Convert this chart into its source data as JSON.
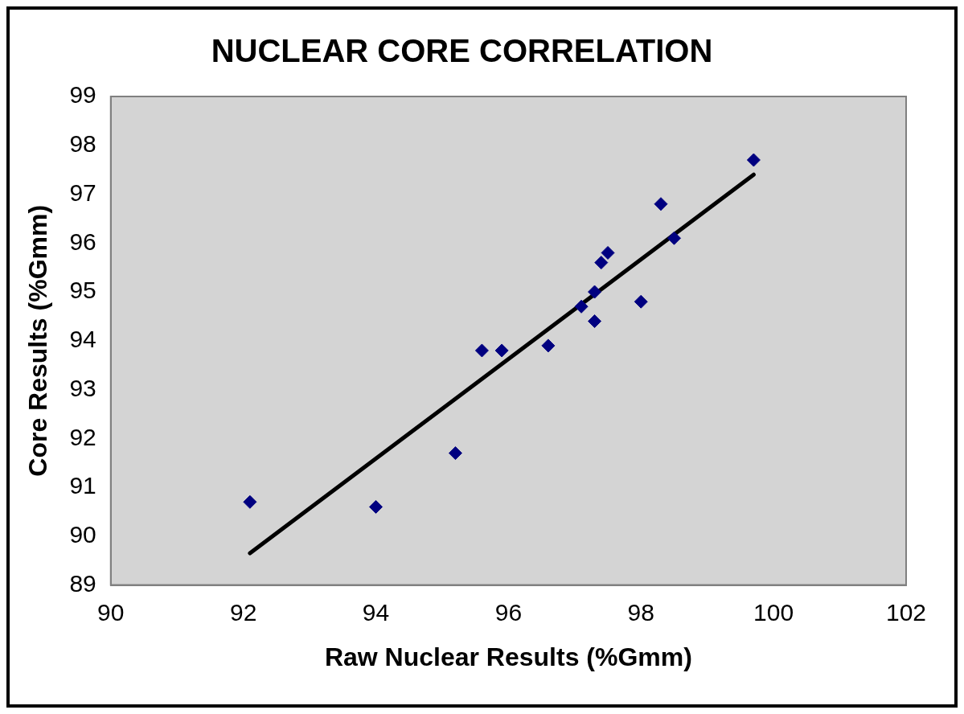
{
  "chart_data": {
    "type": "scatter",
    "title": "NUCLEAR CORE CORRELATION",
    "xlabel": "Raw Nuclear Results (%Gmm)",
    "ylabel": "Core Results (%Gmm)",
    "xlim": [
      90,
      102
    ],
    "xticks": [
      90,
      92,
      94,
      96,
      98,
      100,
      102
    ],
    "ylim": [
      89,
      99
    ],
    "yticks": [
      89,
      90,
      91,
      92,
      93,
      94,
      95,
      96,
      97,
      98,
      99
    ],
    "grid": false,
    "legend": false,
    "series": [
      {
        "color": "#000080",
        "marker": "diamond",
        "x": [
          92.1,
          94.0,
          95.2,
          95.6,
          95.9,
          96.6,
          97.1,
          97.3,
          97.3,
          97.4,
          97.5,
          98.0,
          98.3,
          98.5,
          99.7
        ],
        "values": [
          90.7,
          90.6,
          91.7,
          93.8,
          93.8,
          93.9,
          94.7,
          95.0,
          94.4,
          95.6,
          95.8,
          94.8,
          96.8,
          96.1,
          97.7
        ]
      },
      {
        "type": "line",
        "color": "#000000",
        "marker": "none",
        "line_style": "solid",
        "x": [
          92.1,
          99.7
        ],
        "values": [
          89.65,
          97.4
        ]
      }
    ]
  }
}
